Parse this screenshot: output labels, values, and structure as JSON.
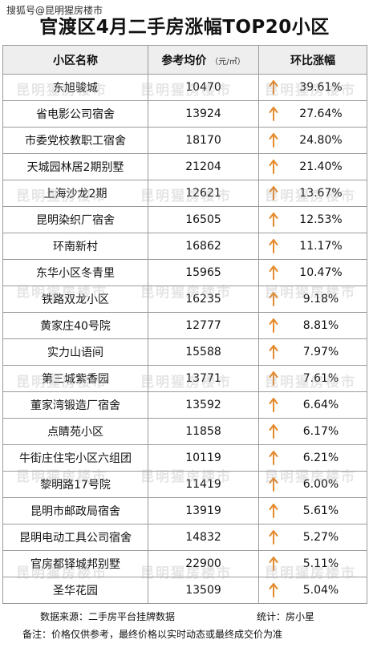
{
  "watermark_source": "搜狐号@昆明猩房楼市",
  "title": "官渡区4月二手房涨幅TOP20小区",
  "headers": {
    "name": "小区名称",
    "price": "参考均价",
    "price_unit": "（元/㎡）",
    "change": "环比涨幅"
  },
  "watermark_text": "昆明猩房楼市",
  "accent_color": "#e58a2c",
  "rows": [
    {
      "name": "东旭骏城",
      "price": "10470",
      "change": "39.61%"
    },
    {
      "name": "省电影公司宿舍",
      "price": "13924",
      "change": "27.64%"
    },
    {
      "name": "市委党校教职工宿舍",
      "price": "18170",
      "change": "24.80%"
    },
    {
      "name": "天城园林居2期别墅",
      "price": "21204",
      "change": "21.40%"
    },
    {
      "name": "上海沙龙2期",
      "price": "12621",
      "change": "13.67%"
    },
    {
      "name": "昆明染织厂宿舍",
      "price": "16505",
      "change": "12.53%"
    },
    {
      "name": "环南新村",
      "price": "16862",
      "change": "11.17%"
    },
    {
      "name": "东华小区冬青里",
      "price": "15965",
      "change": "10.47%"
    },
    {
      "name": "铁路双龙小区",
      "price": "16235",
      "change": "9.18%"
    },
    {
      "name": "黄家庄40号院",
      "price": "12777",
      "change": "8.81%"
    },
    {
      "name": "实力山语间",
      "price": "15588",
      "change": "7.97%"
    },
    {
      "name": "第三城紫香园",
      "price": "13771",
      "change": "7.61%"
    },
    {
      "name": "董家湾锻造厂宿舍",
      "price": "13592",
      "change": "6.64%"
    },
    {
      "name": "点睛苑小区",
      "price": "11858",
      "change": "6.17%"
    },
    {
      "name": "牛街庄住宅小区六组团",
      "price": "10119",
      "change": "6.21%"
    },
    {
      "name": "黎明路17号院",
      "price": "11419",
      "change": "6.00%"
    },
    {
      "name": "昆明市邮政局宿舍",
      "price": "13919",
      "change": "5.61%"
    },
    {
      "name": "昆明电动工具公司宿舍",
      "price": "14832",
      "change": "5.27%"
    },
    {
      "name": "官房都铎城邦别墅",
      "price": "22900",
      "change": "5.11%"
    },
    {
      "name": "圣华花园",
      "price": "13509",
      "change": "5.04%"
    }
  ],
  "footer": {
    "source": "数据来源：二手房平台挂牌数据",
    "stat": "统计：房小星",
    "note": "备注：价格仅供参考，最终价格以实时动态或最终成交价为准"
  }
}
